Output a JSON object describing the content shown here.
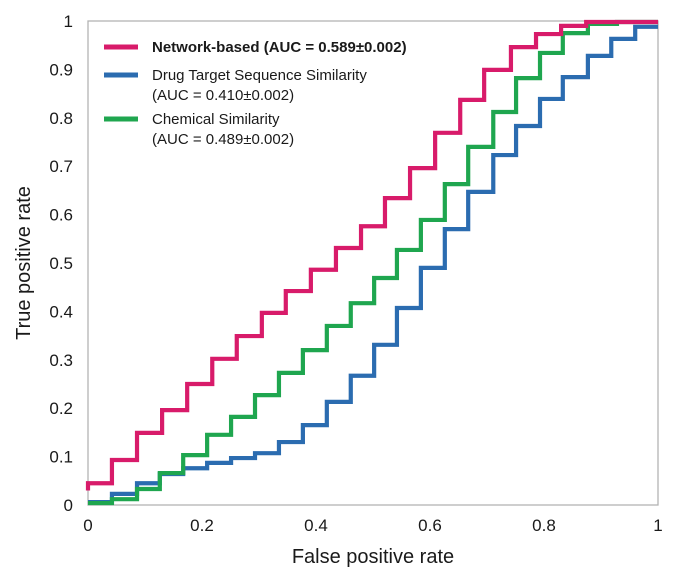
{
  "chart_data": {
    "type": "line",
    "subtype": "step-roc",
    "title": "",
    "xlabel": "False positive rate",
    "ylabel": "True positive rate",
    "xlim": [
      0,
      1
    ],
    "ylim": [
      0,
      1
    ],
    "grid": false,
    "x_ticks": [
      0,
      0.2,
      0.4,
      0.6,
      0.8,
      1
    ],
    "x_tick_labels": [
      "0",
      "0.2",
      "0.4",
      "0.6",
      "0.8",
      "1"
    ],
    "y_ticks": [
      0,
      0.1,
      0.2,
      0.3,
      0.4,
      0.5,
      0.6,
      0.7,
      0.8,
      0.9,
      1
    ],
    "y_tick_labels": [
      "0",
      "0.1",
      "0.2",
      "0.3",
      "0.4",
      "0.5",
      "0.6",
      "0.7",
      "0.8",
      "0.9",
      "1"
    ],
    "legend_position": "top-left",
    "series": [
      {
        "name": "Network-based",
        "legend_lines": [
          "Network-based (AUC = 0.589±0.002)"
        ],
        "legend_bold": true,
        "auc": "0.589±0.002",
        "color": "#d81b6a",
        "x_edges": [
          0,
          0.042,
          0.086,
          0.13,
          0.174,
          0.218,
          0.261,
          0.305,
          0.347,
          0.391,
          0.435,
          0.479,
          0.521,
          0.565,
          0.609,
          0.653,
          0.695,
          0.742,
          0.786,
          0.83,
          0.874,
          1.0
        ],
        "y_levels": [
          0.045,
          0.093,
          0.149,
          0.196,
          0.25,
          0.302,
          0.349,
          0.397,
          0.442,
          0.486,
          0.531,
          0.576,
          0.634,
          0.696,
          0.769,
          0.837,
          0.899,
          0.946,
          0.973,
          0.99,
          0.998
        ],
        "y_start": 0.03
      },
      {
        "name": "Drug Target Sequence Similarity",
        "legend_lines": [
          "Drug Target Sequence Similarity",
          "(AUC = 0.410±0.002)"
        ],
        "legend_bold": false,
        "auc": "0.410±0.002",
        "color": "#2b6cb0",
        "x_edges": [
          0,
          0.042,
          0.086,
          0.126,
          0.167,
          0.209,
          0.251,
          0.293,
          0.335,
          0.377,
          0.419,
          0.461,
          0.502,
          0.542,
          0.584,
          0.626,
          0.667,
          0.711,
          0.751,
          0.793,
          0.833,
          0.877,
          0.918,
          0.96,
          1.0
        ],
        "y_levels": [
          0.006,
          0.023,
          0.045,
          0.064,
          0.076,
          0.087,
          0.097,
          0.107,
          0.13,
          0.165,
          0.213,
          0.267,
          0.331,
          0.407,
          0.49,
          0.57,
          0.647,
          0.723,
          0.783,
          0.839,
          0.884,
          0.928,
          0.963,
          0.988
        ],
        "y_start": 0.006
      },
      {
        "name": "Chemical Similarity",
        "legend_lines": [
          "Chemical Similarity",
          "(AUC = 0.489±0.002)"
        ],
        "legend_bold": false,
        "auc": "0.489±0.002",
        "color": "#1fa64f",
        "x_edges": [
          0,
          0.042,
          0.086,
          0.126,
          0.167,
          0.209,
          0.251,
          0.293,
          0.335,
          0.377,
          0.419,
          0.461,
          0.502,
          0.542,
          0.584,
          0.626,
          0.667,
          0.711,
          0.751,
          0.793,
          0.833,
          0.877,
          0.928,
          1.0
        ],
        "y_levels": [
          0.004,
          0.012,
          0.033,
          0.066,
          0.103,
          0.145,
          0.182,
          0.227,
          0.273,
          0.32,
          0.37,
          0.417,
          0.469,
          0.527,
          0.589,
          0.663,
          0.74,
          0.812,
          0.882,
          0.934,
          0.975,
          0.994,
          0.998
        ],
        "y_start": 0.004
      }
    ]
  }
}
